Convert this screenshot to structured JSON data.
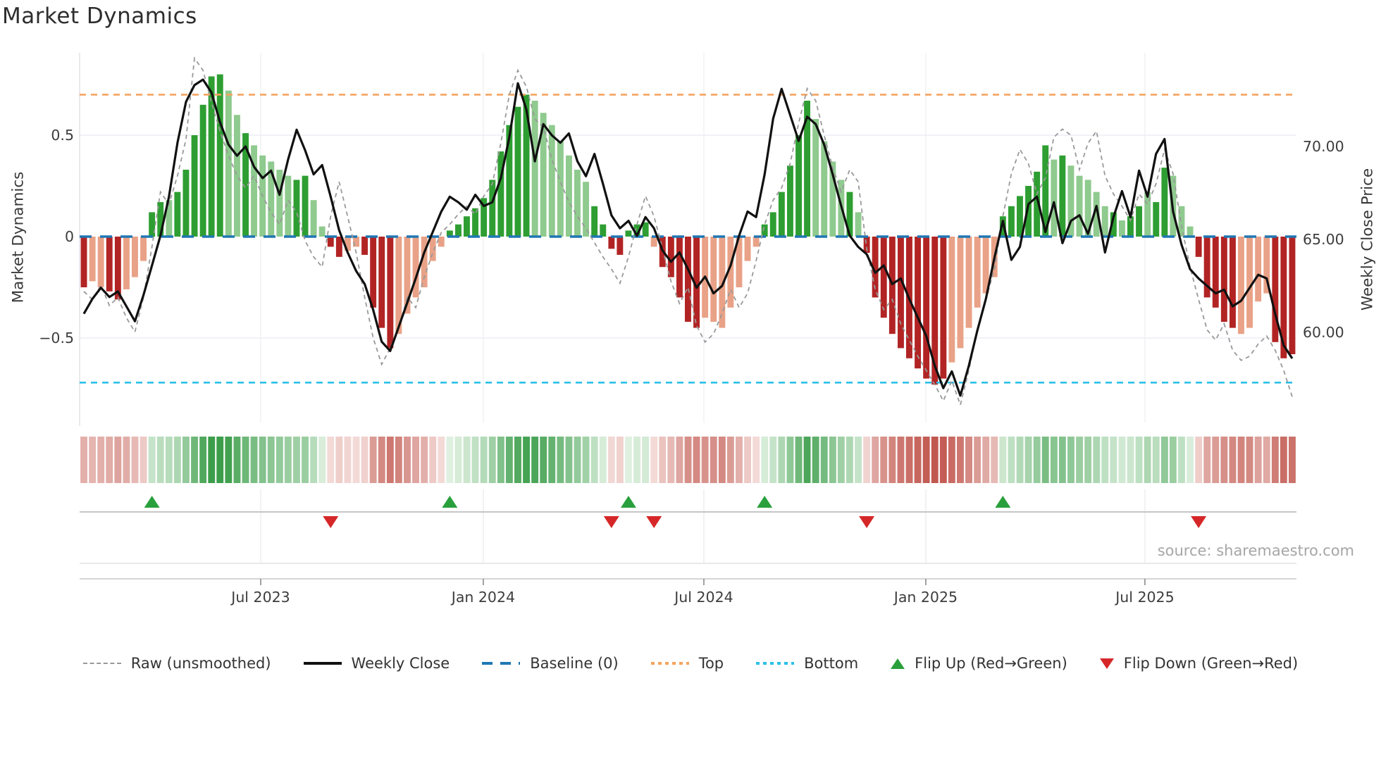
{
  "header": {
    "title": "Market Dynamics"
  },
  "source": "source: sharemaestro.com",
  "colors": {
    "bar_green_dark": "#2e9e32",
    "bar_green_light": "#8fca8e",
    "bar_red_dark": "#b22424",
    "bar_red_light": "#e9a287",
    "weekly_close_line": "#111111",
    "raw_line": "#999999",
    "baseline": "#1f77b4",
    "top_guide": "#f4a460",
    "bottom_guide": "#2cc0e8",
    "flip_up": "#2aa03c",
    "flip_down": "#d62728",
    "heat_green": "#3c9e4b",
    "heat_red": "#c0554d"
  },
  "chart_data": {
    "type": "combo_bar_line_heatmap",
    "title": "Market Dynamics",
    "ylabel_left": "Market Dynamics",
    "ylabel_right": "Weekly Close Price",
    "ylim_left": [
      -0.9,
      0.92
    ],
    "ylim_right": [
      56.0,
      74.5
    ],
    "grid": "horizontal at ±0.5, vertical at month ticks",
    "legend_position": "bottom center",
    "yticks_left": [
      {
        "v": 0.5,
        "t": "0.5"
      },
      {
        "v": 0,
        "t": "0"
      },
      {
        "v": -0.5,
        "t": "−0.5"
      }
    ],
    "yticks_right": [
      {
        "v": 70,
        "t": "70.00"
      },
      {
        "v": 65,
        "t": "65.00"
      },
      {
        "v": 60,
        "t": "60.00"
      }
    ],
    "xticks": [
      {
        "week": 20.78,
        "t": "Jul 2023"
      },
      {
        "week": 46.94,
        "t": "Jan 2024"
      },
      {
        "week": 72.86,
        "t": "Jul 2024"
      },
      {
        "week": 98.94,
        "t": "Jan 2025"
      },
      {
        "week": 124.69,
        "t": "Jul 2025"
      }
    ],
    "guides": {
      "baseline": 0,
      "top": 0.7,
      "bottom": -0.72
    },
    "legend": [
      {
        "key": "raw",
        "swatch": "dash-gray",
        "label": "Raw (unsmoothed)"
      },
      {
        "key": "weekly",
        "swatch": "solid-black",
        "label": "Weekly Close"
      },
      {
        "key": "baseline",
        "swatch": "dash-blue",
        "label": "Baseline (0)"
      },
      {
        "key": "top",
        "swatch": "dot-orange",
        "label": "Top"
      },
      {
        "key": "bottom",
        "swatch": "dot-cyan",
        "label": "Bottom"
      },
      {
        "key": "flip-up",
        "swatch": "tri-up",
        "label": "Flip Up (Red→Green)"
      },
      {
        "key": "flip-down",
        "swatch": "tri-down",
        "label": "Flip Down (Green→Red)"
      }
    ],
    "n_weeks": 143,
    "flip_up_weeks": [
      8,
      43,
      64,
      80,
      108
    ],
    "flip_down_weeks": [
      29,
      62,
      67,
      92,
      131
    ],
    "oscillator": [
      -0.25,
      -0.22,
      -0.25,
      -0.27,
      -0.31,
      -0.26,
      -0.2,
      -0.12,
      0.12,
      0.17,
      0.18,
      0.22,
      0.33,
      0.5,
      0.65,
      0.79,
      0.8,
      0.72,
      0.6,
      0.51,
      0.45,
      0.4,
      0.37,
      0.33,
      0.3,
      0.28,
      0.3,
      0.18,
      0.05,
      -0.05,
      -0.1,
      -0.07,
      -0.05,
      -0.09,
      -0.35,
      -0.45,
      -0.55,
      -0.48,
      -0.38,
      -0.3,
      -0.25,
      -0.12,
      -0.05,
      0.03,
      0.06,
      0.1,
      0.14,
      0.19,
      0.28,
      0.42,
      0.55,
      0.64,
      0.7,
      0.67,
      0.61,
      0.55,
      0.47,
      0.4,
      0.33,
      0.27,
      0.15,
      0.06,
      -0.06,
      -0.09,
      0.03,
      0.06,
      0.07,
      -0.05,
      -0.15,
      -0.2,
      -0.3,
      -0.42,
      -0.45,
      -0.4,
      -0.42,
      -0.45,
      -0.35,
      -0.25,
      -0.12,
      -0.05,
      0.06,
      0.12,
      0.22,
      0.35,
      0.5,
      0.67,
      0.58,
      0.47,
      0.37,
      0.28,
      0.22,
      0.12,
      -0.08,
      -0.3,
      -0.4,
      -0.48,
      -0.55,
      -0.6,
      -0.65,
      -0.7,
      -0.73,
      -0.7,
      -0.62,
      -0.55,
      -0.45,
      -0.35,
      -0.28,
      -0.2,
      0.1,
      0.15,
      0.2,
      0.25,
      0.32,
      0.45,
      0.38,
      0.4,
      0.35,
      0.3,
      0.28,
      0.22,
      0.15,
      0.12,
      0.08,
      0.1,
      0.15,
      0.22,
      0.17,
      0.34,
      0.3,
      0.15,
      0.05,
      -0.1,
      -0.3,
      -0.35,
      -0.42,
      -0.45,
      -0.48,
      -0.45,
      -0.32,
      -0.28,
      -0.52,
      -0.6,
      -0.58
    ],
    "bar_shade": "dllddlllddlddddddlldlllllddllddllddddllllllddddddddddllllllldddddddldddddlllllllddddddlllldlddddddddddllllllddddddldllllldlddlddllldddddllllddd",
    "weekly_close": [
      61.0,
      61.8,
      62.4,
      61.9,
      62.2,
      61.4,
      60.6,
      62.0,
      63.6,
      65.2,
      67.3,
      70.2,
      72.4,
      73.3,
      73.6,
      72.9,
      71.3,
      70.1,
      69.5,
      70.0,
      68.9,
      68.3,
      68.7,
      67.4,
      69.3,
      70.9,
      69.8,
      68.5,
      69.0,
      67.3,
      65.5,
      64.3,
      63.3,
      62.6,
      61.2,
      59.5,
      59.0,
      60.3,
      61.6,
      62.9,
      64.3,
      65.4,
      66.5,
      67.3,
      67.0,
      66.6,
      67.4,
      66.8,
      67.0,
      68.3,
      70.5,
      73.4,
      72.0,
      69.2,
      71.2,
      70.6,
      70.2,
      70.7,
      69.2,
      68.4,
      69.6,
      68.0,
      66.3,
      65.6,
      66.0,
      65.2,
      66.2,
      65.6,
      64.4,
      63.8,
      64.3,
      63.4,
      62.4,
      63.0,
      62.1,
      62.5,
      63.6,
      65.2,
      66.5,
      66.2,
      68.5,
      71.5,
      73.1,
      71.7,
      70.3,
      71.6,
      71.2,
      70.1,
      68.5,
      66.8,
      65.2,
      64.6,
      64.2,
      63.2,
      63.6,
      62.6,
      62.9,
      61.8,
      60.8,
      59.8,
      58.2,
      57.0,
      57.9,
      56.6,
      58.2,
      60.1,
      61.8,
      64.0,
      66.0,
      63.9,
      64.6,
      66.9,
      67.3,
      65.4,
      67.0,
      64.8,
      66.0,
      66.3,
      65.3,
      66.8,
      64.3,
      66.2,
      67.6,
      66.2,
      68.7,
      67.3,
      69.6,
      70.4,
      66.5,
      64.7,
      63.4,
      62.9,
      62.5,
      62.1,
      62.3,
      61.4,
      61.7,
      62.4,
      63.1,
      62.9,
      61.0,
      59.3,
      58.6
    ],
    "raw": [
      -0.27,
      -0.31,
      -0.24,
      -0.34,
      -0.3,
      -0.4,
      -0.47,
      -0.3,
      -0.05,
      0.22,
      0.16,
      0.3,
      0.48,
      0.88,
      0.82,
      0.66,
      0.52,
      0.4,
      0.3,
      0.24,
      0.3,
      0.2,
      0.12,
      0.06,
      0.18,
      0.12,
      -0.02,
      -0.1,
      -0.15,
      0.1,
      0.27,
      0.1,
      -0.08,
      -0.3,
      -0.5,
      -0.63,
      -0.55,
      -0.45,
      -0.3,
      -0.35,
      -0.2,
      -0.08,
      0.02,
      0.06,
      0.11,
      0.15,
      0.11,
      0.2,
      0.26,
      0.46,
      0.7,
      0.82,
      0.74,
      0.58,
      0.54,
      0.38,
      0.27,
      0.17,
      0.1,
      0.04,
      -0.03,
      -0.1,
      -0.16,
      -0.23,
      -0.1,
      0.06,
      0.2,
      0.1,
      -0.06,
      -0.22,
      -0.33,
      -0.25,
      -0.44,
      -0.52,
      -0.48,
      -0.38,
      -0.26,
      -0.35,
      -0.28,
      -0.12,
      0.06,
      0.18,
      0.24,
      0.36,
      0.56,
      0.73,
      0.67,
      0.5,
      0.34,
      0.22,
      0.33,
      0.27,
      -0.06,
      -0.26,
      -0.36,
      -0.31,
      -0.43,
      -0.51,
      -0.59,
      -0.66,
      -0.73,
      -0.81,
      -0.71,
      -0.83,
      -0.66,
      -0.46,
      -0.31,
      -0.16,
      0.1,
      0.31,
      0.43,
      0.36,
      0.21,
      0.29,
      0.49,
      0.53,
      0.5,
      0.33,
      0.46,
      0.52,
      0.3,
      0.21,
      0.15,
      0.08,
      0.21,
      0.16,
      0.26,
      0.43,
      0.31,
      0.05,
      -0.15,
      -0.31,
      -0.46,
      -0.51,
      -0.43,
      -0.56,
      -0.61,
      -0.59,
      -0.53,
      -0.49,
      -0.56,
      -0.66,
      -0.79
    ]
  }
}
